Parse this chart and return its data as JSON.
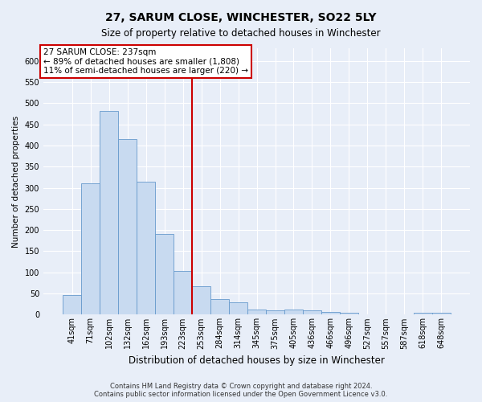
{
  "title1": "27, SARUM CLOSE, WINCHESTER, SO22 5LY",
  "title2": "Size of property relative to detached houses in Winchester",
  "xlabel": "Distribution of detached houses by size in Winchester",
  "ylabel": "Number of detached properties",
  "bar_labels": [
    "41sqm",
    "71sqm",
    "102sqm",
    "132sqm",
    "162sqm",
    "193sqm",
    "223sqm",
    "253sqm",
    "284sqm",
    "314sqm",
    "345sqm",
    "375sqm",
    "405sqm",
    "436sqm",
    "466sqm",
    "496sqm",
    "527sqm",
    "557sqm",
    "587sqm",
    "618sqm",
    "648sqm"
  ],
  "bar_values": [
    46,
    311,
    482,
    415,
    315,
    190,
    103,
    68,
    37,
    30,
    13,
    11,
    13,
    11,
    7,
    4,
    1,
    0,
    0,
    4,
    4
  ],
  "bar_color": "#c8daf0",
  "bar_edge_color": "#6699cc",
  "vline_x_index": 6.5,
  "vline_color": "#cc0000",
  "property_label": "27 SARUM CLOSE: 237sqm",
  "annotation_line1": "← 89% of detached houses are smaller (1,808)",
  "annotation_line2": "11% of semi-detached houses are larger (220) →",
  "annotation_box_color": "#ffffff",
  "annotation_box_edge_color": "#cc0000",
  "ylim": [
    0,
    630
  ],
  "yticks": [
    0,
    50,
    100,
    150,
    200,
    250,
    300,
    350,
    400,
    450,
    500,
    550,
    600
  ],
  "footer1": "Contains HM Land Registry data © Crown copyright and database right 2024.",
  "footer2": "Contains public sector information licensed under the Open Government Licence v3.0.",
  "bg_color": "#e8eef8",
  "plot_bg_color": "#e8eef8",
  "title1_fontsize": 10,
  "title2_fontsize": 8.5,
  "ylabel_fontsize": 7.5,
  "xlabel_fontsize": 8.5,
  "tick_fontsize": 7,
  "annotation_fontsize": 7.5,
  "footer_fontsize": 6
}
